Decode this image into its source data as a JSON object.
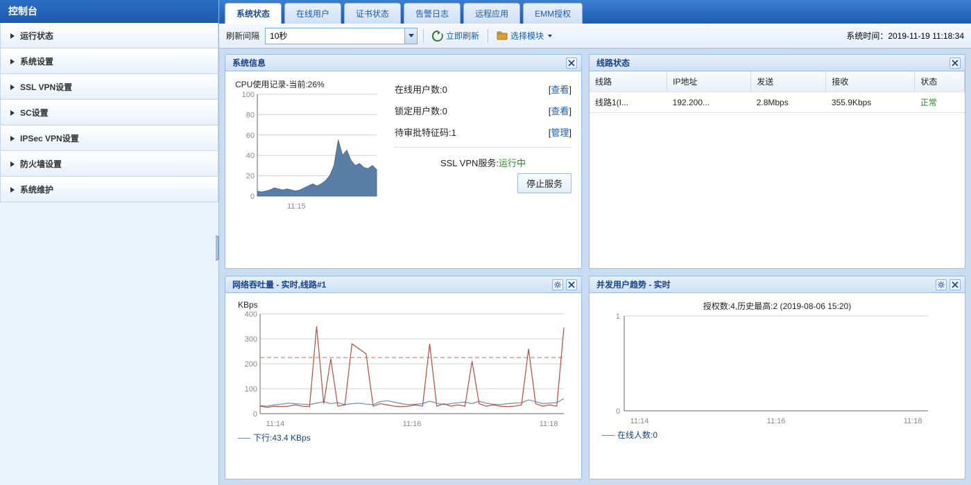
{
  "sidebar": {
    "title": "控制台",
    "items": [
      {
        "label": "运行状态"
      },
      {
        "label": "系统设置"
      },
      {
        "label": "SSL VPN设置"
      },
      {
        "label": "SC设置"
      },
      {
        "label": "IPSec VPN设置"
      },
      {
        "label": "防火墙设置"
      },
      {
        "label": "系统维护"
      }
    ]
  },
  "tabs": [
    {
      "label": "系统状态",
      "active": true
    },
    {
      "label": "在线用户"
    },
    {
      "label": "证书状态"
    },
    {
      "label": "告警日志"
    },
    {
      "label": "远程应用"
    },
    {
      "label": "EMM授权"
    }
  ],
  "toolbar": {
    "refresh_label": "刷新间隔",
    "refresh_value": "10秒",
    "immediate_refresh": "立即刷新",
    "select_module": "选择模块",
    "system_time_label": "系统时间：",
    "system_time_value": "2019-11-19 11:18:34"
  },
  "sysinfo_panel": {
    "title": "系统信息",
    "cpu_title_prefix": "CPU使用记录-当前:",
    "cpu_current": "26%",
    "cpu_chart": {
      "ylim": [
        0,
        100
      ],
      "ytick_step": 20,
      "xtick_label": "11:15",
      "values": [
        5,
        4,
        5,
        6,
        8,
        7,
        6,
        7,
        6,
        5,
        6,
        8,
        10,
        12,
        10,
        12,
        15,
        20,
        30,
        55,
        40,
        45,
        35,
        30,
        32,
        28,
        27,
        30,
        26
      ],
      "fill_color": "#5a7fa6",
      "stroke_color": "#4a6b90",
      "grid_color": "#d0d0d0",
      "axis_color": "#666",
      "text_color": "#888"
    },
    "stats": {
      "online_users_label": "在线用户数:",
      "online_users_value": "0",
      "locked_users_label": "锁定用户数:",
      "locked_users_value": "0",
      "pending_code_label": "待审批特征码:",
      "pending_code_value": "1",
      "view_link": "查看",
      "manage_link": "管理"
    },
    "service_label": "SSL VPN服务:",
    "service_status": "运行中",
    "stop_button": "停止服务"
  },
  "line_status_panel": {
    "title": "线路状态",
    "columns": [
      "线路",
      "IP地址",
      "发送",
      "接收",
      "状态"
    ],
    "rows": [
      {
        "line": "线路1(I...",
        "ip": "192.200...",
        "tx": "2.8Mbps",
        "rx": "355.9Kbps",
        "status": "正常"
      }
    ]
  },
  "throughput_panel": {
    "title": "网络吞吐量 - 实时,线路#1",
    "unit": "KBps",
    "chart": {
      "ylim": [
        0,
        400
      ],
      "ytick_step": 100,
      "xticks": [
        "11:14",
        "11:16",
        "11:18"
      ],
      "series_tx": {
        "color": "#b94a3d",
        "values": [
          30,
          25,
          30,
          28,
          30,
          35,
          30,
          28,
          350,
          40,
          220,
          30,
          35,
          280,
          260,
          240,
          30,
          40,
          35,
          30,
          28,
          30,
          35,
          30,
          280,
          30,
          40,
          30,
          35,
          30,
          210,
          40,
          30,
          35,
          30,
          28,
          30,
          35,
          260,
          40,
          30,
          35,
          30,
          345
        ]
      },
      "series_rx": {
        "color": "#6b8ab8",
        "values": [
          32,
          30,
          35,
          38,
          42,
          40,
          38,
          36,
          42,
          48,
          40,
          44,
          36,
          40,
          42,
          38,
          36,
          48,
          52,
          46,
          40,
          36,
          38,
          40,
          50,
          42,
          36,
          40,
          44,
          46,
          40,
          50,
          42,
          38,
          36,
          40,
          42,
          44,
          55,
          48,
          40,
          42,
          44,
          60
        ]
      },
      "threshold": {
        "value": 225,
        "color": "#c96a5a",
        "dash": "6,4"
      },
      "grid_color": "#d0d0d0",
      "axis_color": "#666",
      "text_color": "#888"
    },
    "legend_rx_label": "下行:",
    "legend_rx_value": "43.4 KBps"
  },
  "users_trend_panel": {
    "title": "并发用户趋势 - 实时",
    "subtitle_prefix": "授权数:",
    "subtitle_auth": "4",
    "subtitle_hist_prefix": ",历史最高:",
    "subtitle_hist": "2",
    "subtitle_date": " (2019-08-06 15:20)",
    "chart": {
      "ylim": [
        0,
        1
      ],
      "yticks": [
        0,
        1
      ],
      "xticks": [
        "11:14",
        "11:16",
        "11:18"
      ],
      "value": 0,
      "color": "#6b8ab8",
      "grid_color": "#d0d0d0",
      "axis_color": "#666",
      "text_color": "#888"
    },
    "legend_label": "在线人数:",
    "legend_value": "0"
  }
}
